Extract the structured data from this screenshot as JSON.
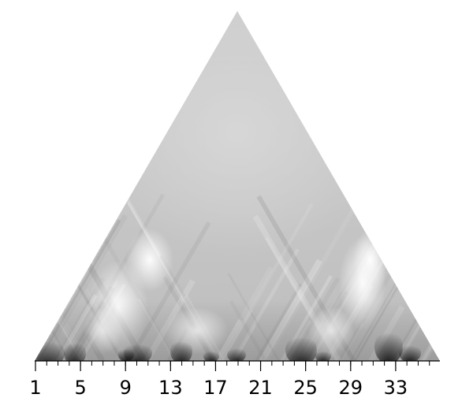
{
  "chart_data": {
    "type": "heatmap",
    "shape": "triangle",
    "colormap": "grayscale",
    "x_ticks": [
      "1",
      "5",
      "9",
      "13",
      "17",
      "21",
      "25",
      "29",
      "33"
    ],
    "x_range": [
      1,
      36
    ],
    "minor_tick_step": 1,
    "grid": false,
    "legend": "none"
  }
}
